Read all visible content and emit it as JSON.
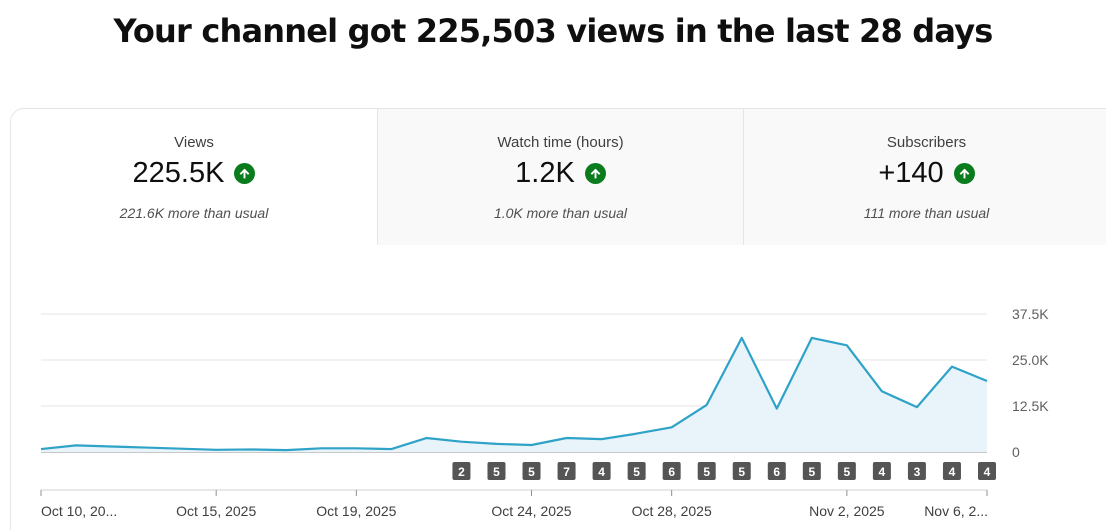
{
  "headline": "Your channel got 225,503 views in the last 28 days",
  "tabs": [
    {
      "label": "Views",
      "value": "225.5K",
      "note": "221.6K more than usual",
      "trend": "up"
    },
    {
      "label": "Watch time (hours)",
      "value": "1.2K",
      "note": "1.0K more than usual",
      "trend": "up"
    },
    {
      "label": "Subscribers",
      "value": "+140",
      "note": "111 more than usual",
      "trend": "up"
    }
  ],
  "colors": {
    "line": "#2fa2c8",
    "area": "#e8f4fa",
    "trend_up": "#0b7c1d",
    "marker": "#555555"
  },
  "chart_data": {
    "type": "area",
    "x": [
      "Oct 10, 2025",
      "Oct 11, 2025",
      "Oct 12, 2025",
      "Oct 13, 2025",
      "Oct 14, 2025",
      "Oct 15, 2025",
      "Oct 16, 2025",
      "Oct 17, 2025",
      "Oct 18, 2025",
      "Oct 19, 2025",
      "Oct 20, 2025",
      "Oct 21, 2025",
      "Oct 22, 2025",
      "Oct 23, 2025",
      "Oct 24, 2025",
      "Oct 25, 2025",
      "Oct 26, 2025",
      "Oct 27, 2025",
      "Oct 28, 2025",
      "Oct 29, 2025",
      "Oct 30, 2025",
      "Oct 31, 2025",
      "Nov 1, 2025",
      "Nov 2, 2025",
      "Nov 3, 2025",
      "Nov 4, 2025",
      "Nov 5, 2025",
      "Nov 6, 2025"
    ],
    "series": [
      {
        "values": [
          800,
          1800,
          1500,
          1200,
          900,
          600,
          700,
          500,
          1000,
          1000,
          800,
          3800,
          2800,
          2200,
          1900,
          3800,
          3500,
          5000,
          6700,
          12800,
          31000,
          11800,
          31000,
          29000,
          16500,
          12200,
          23200,
          19300
        ]
      }
    ],
    "ylim": [
      0,
      37500
    ],
    "y_ticks": [
      "0",
      "12.5K",
      "25.0K",
      "37.5K"
    ],
    "x_ticks": [
      {
        "index": 0,
        "label": "Oct 10, 20..."
      },
      {
        "index": 5,
        "label": "Oct 15, 2025"
      },
      {
        "index": 9,
        "label": "Oct 19, 2025"
      },
      {
        "index": 14,
        "label": "Oct 24, 2025"
      },
      {
        "index": 18,
        "label": "Oct 28, 2025"
      },
      {
        "index": 23,
        "label": "Nov 2, 2025"
      },
      {
        "index": 27,
        "label": "Nov 6, 2..."
      }
    ],
    "markers": [
      {
        "index": 12,
        "label": "2"
      },
      {
        "index": 13,
        "label": "5"
      },
      {
        "index": 14,
        "label": "5"
      },
      {
        "index": 15,
        "label": "7"
      },
      {
        "index": 16,
        "label": "4"
      },
      {
        "index": 17,
        "label": "5"
      },
      {
        "index": 18,
        "label": "6"
      },
      {
        "index": 19,
        "label": "5"
      },
      {
        "index": 20,
        "label": "5"
      },
      {
        "index": 21,
        "label": "6"
      },
      {
        "index": 22,
        "label": "5"
      },
      {
        "index": 23,
        "label": "5"
      },
      {
        "index": 24,
        "label": "4"
      },
      {
        "index": 25,
        "label": "3"
      },
      {
        "index": 26,
        "label": "4"
      },
      {
        "index": 27,
        "label": "4"
      }
    ]
  }
}
